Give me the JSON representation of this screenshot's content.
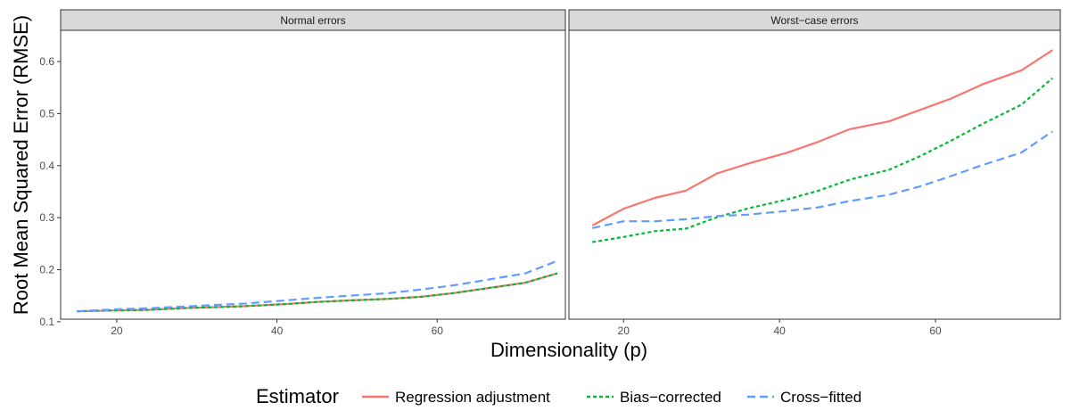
{
  "chart_data": {
    "type": "line",
    "xlabel": "Dimensionality (p)",
    "ylabel": "Root Mean Squared Error (RMSE)",
    "xlim": [
      13,
      76
    ],
    "ylim": [
      0.105,
      0.66
    ],
    "x_ticks": [
      20,
      40,
      60
    ],
    "y_ticks": [
      0.1,
      0.2,
      0.3,
      0.4,
      0.5,
      0.6
    ],
    "grid": false,
    "legend": {
      "title": "Estimator",
      "placement": "bottom",
      "entries": [
        "Regression adjustment",
        "Bias−corrected",
        "Cross−fitted"
      ]
    },
    "series_styles": [
      {
        "name": "Regression adjustment",
        "color": "#F8766D",
        "dash": "solid"
      },
      {
        "name": "Bias−corrected",
        "color": "#00BA38",
        "dash": "dotted"
      },
      {
        "name": "Cross−fitted",
        "color": "#619CFF",
        "dash": "dashed"
      }
    ],
    "panels": [
      {
        "title": "Normal errors",
        "x": [
          15,
          20,
          24,
          28,
          32,
          36,
          41,
          45,
          49,
          54,
          58,
          62,
          66,
          71,
          75
        ],
        "series": [
          {
            "name": "Regression adjustment",
            "values": [
              0.12,
              0.122,
              0.123,
              0.126,
              0.128,
              0.13,
              0.134,
              0.138,
              0.141,
              0.144,
              0.148,
              0.155,
              0.164,
              0.175,
              0.193
            ]
          },
          {
            "name": "Bias−corrected",
            "values": [
              0.12,
              0.122,
              0.123,
              0.126,
              0.128,
              0.13,
              0.134,
              0.138,
              0.141,
              0.144,
              0.148,
              0.155,
              0.164,
              0.175,
              0.193
            ]
          },
          {
            "name": "Cross−fitted",
            "values": [
              0.12,
              0.124,
              0.126,
              0.129,
              0.132,
              0.135,
              0.141,
              0.146,
              0.15,
              0.155,
              0.162,
              0.17,
              0.18,
              0.193,
              0.217
            ]
          }
        ]
      },
      {
        "title": "Worst−case errors",
        "x": [
          16,
          20,
          24,
          28,
          32,
          36,
          41,
          45,
          49,
          54,
          58,
          62,
          66,
          71,
          75
        ],
        "series": [
          {
            "name": "Regression adjustment",
            "values": [
              0.285,
              0.317,
              0.338,
              0.352,
              0.385,
              0.404,
              0.425,
              0.446,
              0.47,
              0.485,
              0.507,
              0.529,
              0.556,
              0.583,
              0.622
            ]
          },
          {
            "name": "Bias−corrected",
            "values": [
              0.253,
              0.263,
              0.274,
              0.279,
              0.301,
              0.318,
              0.335,
              0.352,
              0.373,
              0.392,
              0.418,
              0.448,
              0.48,
              0.517,
              0.568
            ]
          },
          {
            "name": "Cross−fitted",
            "values": [
              0.28,
              0.293,
              0.293,
              0.297,
              0.303,
              0.306,
              0.313,
              0.32,
              0.332,
              0.344,
              0.36,
              0.38,
              0.401,
              0.425,
              0.466
            ]
          }
        ]
      }
    ]
  }
}
